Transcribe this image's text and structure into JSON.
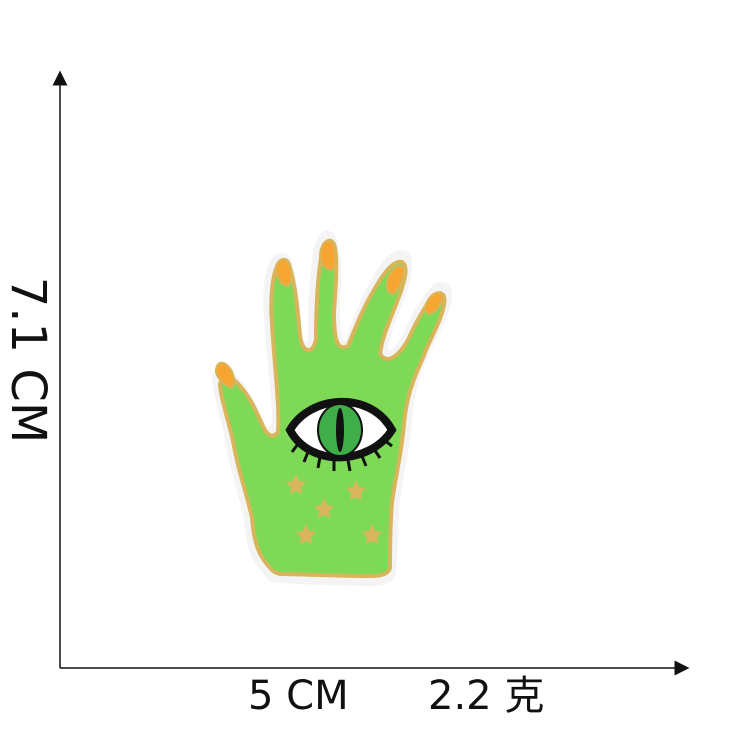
{
  "dimensions": {
    "height_label": "7.1 CM",
    "width_label": "5 CM",
    "weight_label": "2.2 克"
  },
  "patch": {
    "subject": "green hand with eye embroidered patch",
    "colors": {
      "hand_fill": "#7ED957",
      "hand_outline": "#D8B45A",
      "edge_white": "#F4F4F4",
      "nail_orange": "#F7A531",
      "eye_black": "#111111",
      "iris_green": "#3FAE49",
      "star_gold": "#D9B65E"
    }
  },
  "axis": {
    "color": "#111111"
  }
}
